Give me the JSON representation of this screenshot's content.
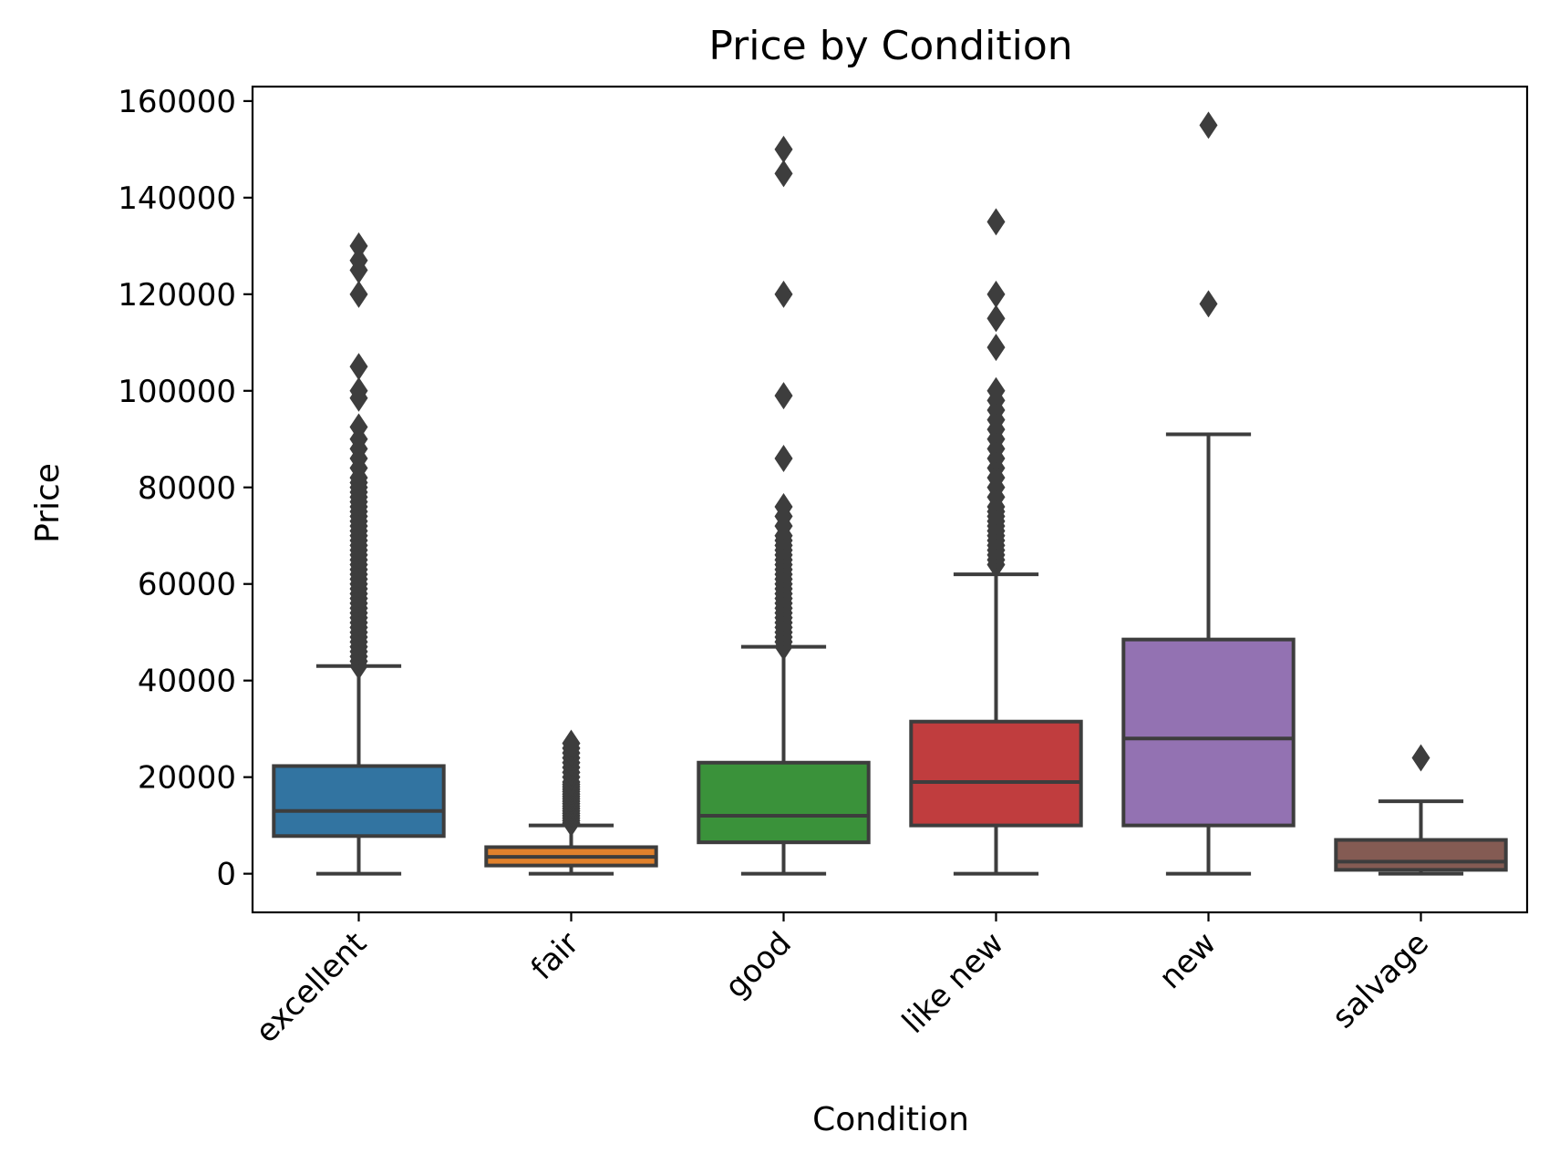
{
  "chart_data": {
    "type": "box",
    "title": "Price by Condition",
    "xlabel": "Condition",
    "ylabel": "Price",
    "ylim": [
      -8000,
      163000
    ],
    "yticks": [
      0,
      20000,
      40000,
      60000,
      80000,
      100000,
      120000,
      140000,
      160000
    ],
    "ytick_labels": [
      "0",
      "20000",
      "40000",
      "60000",
      "80000",
      "100000",
      "120000",
      "140000",
      "160000"
    ],
    "categories": [
      "excellent",
      "fair",
      "good",
      "like new",
      "new",
      "salvage"
    ],
    "grid": false,
    "boxes": [
      {
        "category": "excellent",
        "color": "#3274a1",
        "whisker_low": 0,
        "q1": 7800,
        "median": 13000,
        "q3": 22300,
        "whisker_high": 43000,
        "outliers": [
          43000,
          44000,
          45000,
          46000,
          47000,
          48000,
          49000,
          50000,
          51000,
          52000,
          53000,
          54000,
          55000,
          56000,
          57000,
          58000,
          59000,
          60000,
          61000,
          62000,
          63000,
          64000,
          65000,
          66000,
          67000,
          68000,
          69000,
          70000,
          71000,
          72000,
          73000,
          74000,
          75000,
          76000,
          77000,
          78000,
          79000,
          80000,
          81000,
          82000,
          84000,
          86000,
          88000,
          90000,
          92500,
          98500,
          100000,
          105000,
          120000,
          125000,
          127000,
          130000
        ]
      },
      {
        "category": "fair",
        "color": "#e1812c",
        "whisker_low": 0,
        "q1": 1700,
        "median": 3500,
        "q3": 5500,
        "whisker_high": 10000,
        "outliers": [
          10500,
          11000,
          11500,
          12000,
          12500,
          13000,
          13500,
          14000,
          14500,
          15000,
          15500,
          16000,
          16500,
          17000,
          17500,
          18000,
          18500,
          19000,
          20000,
          21000,
          22000,
          23000,
          24000,
          25000,
          26000,
          27000
        ]
      },
      {
        "category": "good",
        "color": "#3a923a",
        "whisker_low": 0,
        "q1": 6500,
        "median": 12000,
        "q3": 23000,
        "whisker_high": 47000,
        "outliers": [
          47000,
          48000,
          49000,
          50000,
          51000,
          52000,
          53000,
          54000,
          55000,
          56000,
          57000,
          58000,
          59000,
          60000,
          61000,
          62000,
          63000,
          64000,
          65000,
          66000,
          67000,
          68000,
          69000,
          70000,
          72000,
          74000,
          76000,
          86000,
          99000,
          120000,
          145000,
          150000
        ]
      },
      {
        "category": "like new",
        "color": "#c03d3e",
        "whisker_low": 0,
        "q1": 10000,
        "median": 19000,
        "q3": 31500,
        "whisker_high": 62000,
        "outliers": [
          64000,
          65000,
          66000,
          67000,
          68000,
          69000,
          70000,
          71000,
          72000,
          73000,
          74000,
          75000,
          76000,
          78000,
          80000,
          82000,
          84000,
          86000,
          88000,
          90000,
          92000,
          94000,
          96000,
          98000,
          100000,
          109000,
          115000,
          120000,
          135000
        ]
      },
      {
        "category": "new",
        "color": "#9372b2",
        "whisker_low": 0,
        "q1": 10000,
        "median": 28000,
        "q3": 48500,
        "whisker_high": 91000,
        "outliers": [
          118000,
          155000
        ]
      },
      {
        "category": "salvage",
        "color": "#845b53",
        "whisker_low": 0,
        "q1": 800,
        "median": 2500,
        "q3": 7000,
        "whisker_high": 15000,
        "outliers": [
          24000
        ]
      }
    ]
  }
}
